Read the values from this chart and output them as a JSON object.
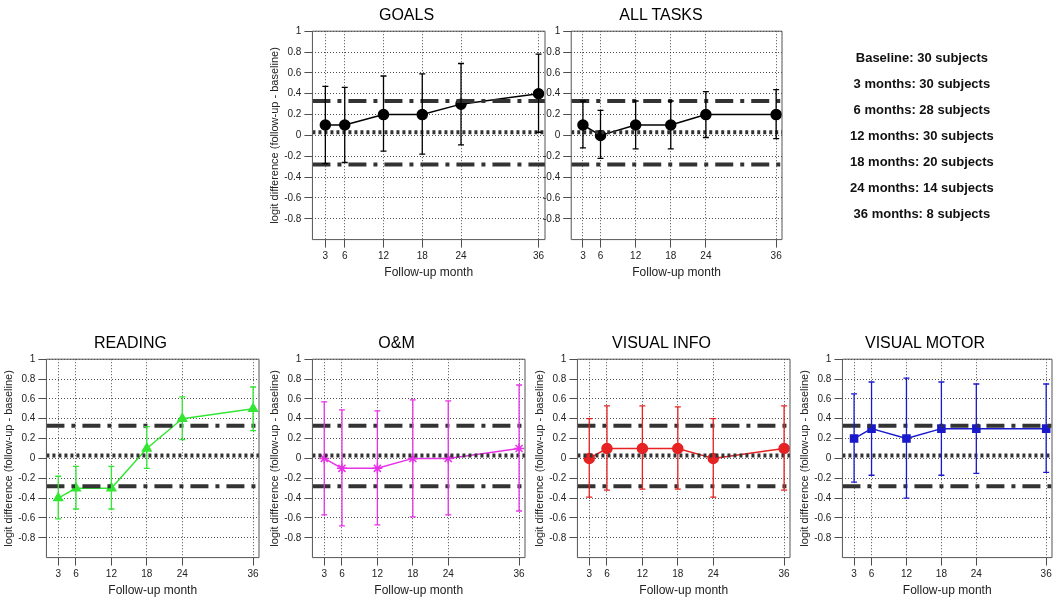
{
  "chart_data": [
    {
      "type": "line",
      "title": "GOALS",
      "xlabel": "Follow-up month",
      "ylabel": "logit difference (follow-up - baseline)",
      "x": [
        3,
        6,
        12,
        18,
        24,
        36
      ],
      "xlim": [
        1,
        37
      ],
      "xticks": [
        3,
        6,
        12,
        18,
        24,
        36
      ],
      "ylim": [
        -1,
        1
      ],
      "yticks": [
        -0.8,
        -0.6,
        -0.4,
        -0.2,
        0,
        0.2,
        0.4,
        0.6,
        0.8,
        1
      ],
      "grid": true,
      "marker": "circle",
      "series": [
        {
          "color": "#000000",
          "values": [
            0.1,
            0.1,
            0.2,
            0.2,
            0.3,
            0.4
          ],
          "errors": [
            [
              -0.27,
              0.47
            ],
            [
              -0.26,
              0.46
            ],
            [
              -0.15,
              0.57
            ],
            [
              -0.18,
              0.59
            ],
            [
              -0.09,
              0.69
            ],
            [
              0.03,
              0.78
            ]
          ]
        }
      ],
      "ref_lines": [
        {
          "axis": "y",
          "value": 0.33,
          "color": "#333333",
          "line_style": "dashed"
        },
        {
          "axis": "y",
          "value": 0.03,
          "color": "#333333",
          "line_style": "dotted"
        },
        {
          "axis": "y",
          "value": -0.28,
          "color": "#333333",
          "line_style": "dashed"
        }
      ]
    },
    {
      "type": "line",
      "title": "ALL TASKS",
      "xlabel": "Follow-up month",
      "x": [
        3,
        6,
        12,
        18,
        24,
        36
      ],
      "xlim": [
        1,
        37
      ],
      "xticks": [
        3,
        6,
        12,
        18,
        24,
        36
      ],
      "ylim": [
        -1,
        1
      ],
      "yticks": [
        -0.8,
        -0.6,
        -0.4,
        -0.2,
        0,
        0.2,
        0.4,
        0.6,
        0.8,
        1
      ],
      "grid": true,
      "marker": "circle",
      "series": [
        {
          "color": "#000000",
          "values": [
            0.1,
            0,
            0.1,
            0.1,
            0.2,
            0.2
          ],
          "errors": [
            [
              -0.12,
              0.33
            ],
            [
              -0.22,
              0.24
            ],
            [
              -0.13,
              0.33
            ],
            [
              -0.13,
              0.33
            ],
            [
              -0.02,
              0.42
            ],
            [
              -0.03,
              0.44
            ]
          ]
        }
      ],
      "ref_lines": [
        {
          "axis": "y",
          "value": 0.33,
          "color": "#333333",
          "line_style": "dashed"
        },
        {
          "axis": "y",
          "value": 0.03,
          "color": "#333333",
          "line_style": "dotted"
        },
        {
          "axis": "y",
          "value": -0.28,
          "color": "#333333",
          "line_style": "dashed"
        }
      ]
    },
    {
      "type": "other",
      "annotations": [
        "Baseline: 30 subjects",
        "3 months: 30 subjects",
        "6 months: 28 subjects",
        "12 months: 30 subjects",
        "18 months: 20 subjects",
        "24 months: 14 subjects",
        "36 months: 8 subjects"
      ]
    },
    {
      "type": "line",
      "title": "READING",
      "xlabel": "Follow-up month",
      "ylabel": "logit difference (follow-up - baseline)",
      "x": [
        3,
        6,
        12,
        18,
        24,
        36
      ],
      "xlim": [
        1,
        37
      ],
      "xticks": [
        3,
        6,
        12,
        18,
        24,
        36
      ],
      "ylim": [
        -1,
        1
      ],
      "yticks": [
        -0.8,
        -0.6,
        -0.4,
        -0.2,
        0,
        0.2,
        0.4,
        0.6,
        0.8,
        1
      ],
      "grid": true,
      "marker": "triangle",
      "series": [
        {
          "color": "#33e633",
          "values": [
            -0.4,
            -0.3,
            -0.3,
            0.1,
            0.4,
            0.5
          ],
          "errors": [
            [
              -0.61,
              -0.18
            ],
            [
              -0.51,
              -0.08
            ],
            [
              -0.51,
              -0.08
            ],
            [
              -0.1,
              0.32
            ],
            [
              0.19,
              0.62
            ],
            [
              0.28,
              0.72
            ]
          ]
        }
      ],
      "ref_lines": [
        {
          "axis": "y",
          "value": 0.33,
          "color": "#333333",
          "line_style": "dashed"
        },
        {
          "axis": "y",
          "value": 0.03,
          "color": "#333333",
          "line_style": "dotted"
        },
        {
          "axis": "y",
          "value": -0.28,
          "color": "#333333",
          "line_style": "dashed"
        }
      ]
    },
    {
      "type": "line",
      "title": "O&M",
      "xlabel": "Follow-up month",
      "ylabel": "logit difference (follow-up - baseline)",
      "x": [
        3,
        6,
        12,
        18,
        24,
        36
      ],
      "xlim": [
        1,
        37
      ],
      "xticks": [
        3,
        6,
        12,
        18,
        24,
        36
      ],
      "ylim": [
        -1,
        1
      ],
      "yticks": [
        -0.8,
        -0.6,
        -0.4,
        -0.2,
        0,
        0.2,
        0.4,
        0.6,
        0.8,
        1
      ],
      "grid": true,
      "marker": "cross",
      "series": [
        {
          "color": "#e633e6",
          "values": [
            0,
            -0.1,
            -0.1,
            0,
            0,
            0.1
          ],
          "errors": [
            [
              -0.57,
              0.57
            ],
            [
              -0.68,
              0.49
            ],
            [
              -0.67,
              0.48
            ],
            [
              -0.59,
              0.59
            ],
            [
              -0.57,
              0.58
            ],
            [
              -0.53,
              0.74
            ]
          ]
        }
      ],
      "ref_lines": [
        {
          "axis": "y",
          "value": 0.33,
          "color": "#333333",
          "line_style": "dashed"
        },
        {
          "axis": "y",
          "value": 0.03,
          "color": "#333333",
          "line_style": "dotted"
        },
        {
          "axis": "y",
          "value": -0.28,
          "color": "#333333",
          "line_style": "dashed"
        }
      ]
    },
    {
      "type": "line",
      "title": "VISUAL INFO",
      "xlabel": "Follow-up month",
      "ylabel": "logit difference (follow-up - baseline)",
      "x": [
        3,
        6,
        12,
        18,
        24,
        36
      ],
      "xlim": [
        1,
        37
      ],
      "xticks": [
        3,
        6,
        12,
        18,
        24,
        36
      ],
      "ylim": [
        -1,
        1
      ],
      "yticks": [
        -0.8,
        -0.6,
        -0.4,
        -0.2,
        0,
        0.2,
        0.4,
        0.6,
        0.8,
        1
      ],
      "grid": true,
      "marker": "circle",
      "series": [
        {
          "color": "#e62222",
          "values": [
            0,
            0.1,
            0.1,
            0.1,
            0,
            0.1
          ],
          "errors": [
            [
              -0.39,
              0.4
            ],
            [
              -0.32,
              0.53
            ],
            [
              -0.31,
              0.53
            ],
            [
              -0.31,
              0.52
            ],
            [
              -0.39,
              0.4
            ],
            [
              -0.32,
              0.53
            ]
          ]
        }
      ],
      "ref_lines": [
        {
          "axis": "y",
          "value": 0.33,
          "color": "#333333",
          "line_style": "dashed"
        },
        {
          "axis": "y",
          "value": 0.03,
          "color": "#333333",
          "line_style": "dotted"
        },
        {
          "axis": "y",
          "value": -0.28,
          "color": "#333333",
          "line_style": "dashed"
        }
      ]
    },
    {
      "type": "line",
      "title": "VISUAL MOTOR",
      "xlabel": "Follow-up month",
      "ylabel": "logit difference (follow-up - baseline)",
      "x": [
        3,
        6,
        12,
        18,
        24,
        36
      ],
      "xlim": [
        1,
        37
      ],
      "xticks": [
        3,
        6,
        12,
        18,
        24,
        36
      ],
      "ylim": [
        -1,
        1
      ],
      "yticks": [
        -0.8,
        -0.6,
        -0.4,
        -0.2,
        0,
        0.2,
        0.4,
        0.6,
        0.8,
        1
      ],
      "grid": true,
      "marker": "square",
      "series": [
        {
          "color": "#1a1acc",
          "values": [
            0.2,
            0.3,
            0.2,
            0.3,
            0.3,
            0.3
          ],
          "errors": [
            [
              -0.24,
              0.65
            ],
            [
              -0.17,
              0.77
            ],
            [
              -0.4,
              0.81
            ],
            [
              -0.17,
              0.77
            ],
            [
              -0.15,
              0.75
            ],
            [
              -0.14,
              0.75
            ]
          ]
        }
      ],
      "ref_lines": [
        {
          "axis": "y",
          "value": 0.33,
          "color": "#333333",
          "line_style": "dashed"
        },
        {
          "axis": "y",
          "value": 0.03,
          "color": "#333333",
          "line_style": "dotted"
        },
        {
          "axis": "y",
          "value": -0.28,
          "color": "#333333",
          "line_style": "dashed"
        }
      ]
    }
  ]
}
